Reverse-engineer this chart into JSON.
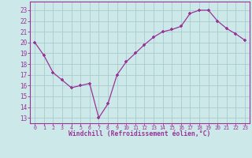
{
  "x": [
    0,
    1,
    2,
    3,
    4,
    5,
    6,
    7,
    8,
    9,
    10,
    11,
    12,
    13,
    14,
    15,
    16,
    17,
    18,
    19,
    20,
    21,
    22,
    23
  ],
  "y": [
    20.0,
    18.8,
    17.2,
    16.5,
    15.8,
    16.0,
    16.2,
    13.0,
    14.3,
    17.0,
    18.2,
    19.0,
    19.8,
    20.5,
    21.0,
    21.2,
    21.5,
    22.7,
    23.0,
    23.0,
    22.0,
    21.3,
    20.8,
    20.2
  ],
  "line_color": "#993399",
  "marker": "+",
  "bg_color": "#cce8e8",
  "grid_color": "#aacccc",
  "xlabel": "Windchill (Refroidissement éolien,°C)",
  "xtick_labels": [
    "0",
    "1",
    "2",
    "3",
    "4",
    "5",
    "6",
    "7",
    "8",
    "9",
    "10",
    "11",
    "12",
    "13",
    "14",
    "15",
    "16",
    "17",
    "18",
    "19",
    "20",
    "21",
    "22",
    "23"
  ],
  "ytick_labels": [
    "13",
    "14",
    "15",
    "16",
    "17",
    "18",
    "19",
    "20",
    "21",
    "22",
    "23"
  ],
  "ylim": [
    12.5,
    23.8
  ],
  "xlim": [
    -0.5,
    23.5
  ],
  "font_color": "#993399"
}
